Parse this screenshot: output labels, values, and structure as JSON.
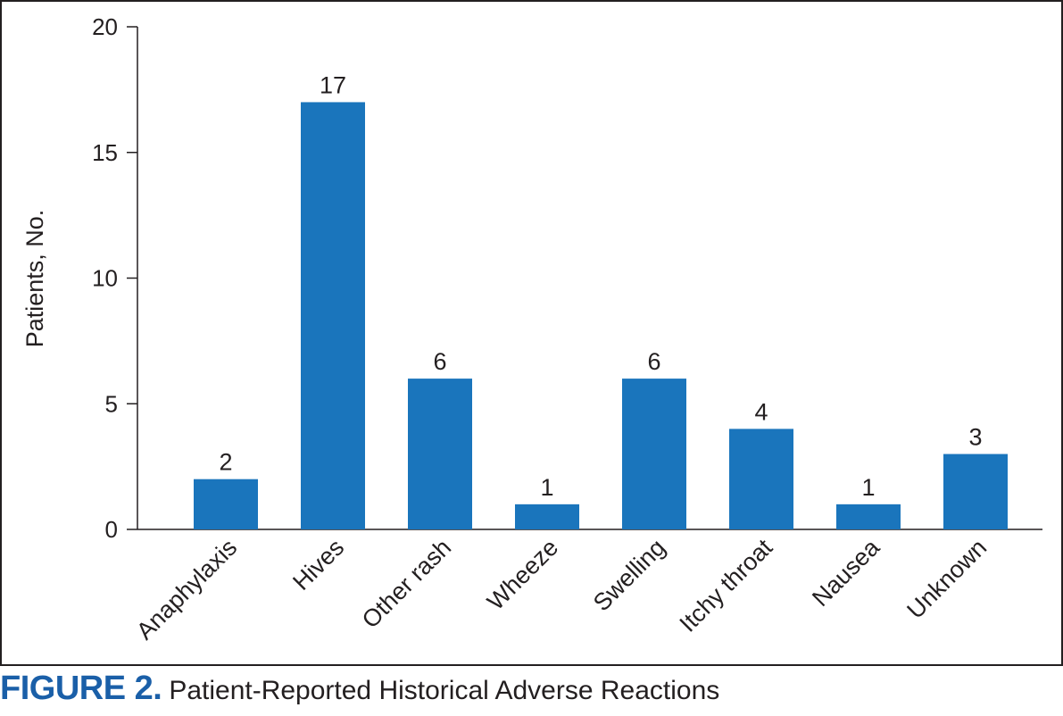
{
  "chart_data": {
    "type": "bar",
    "categories": [
      "Anaphylaxis",
      "Hives",
      "Other rash",
      "Wheeze",
      "Swelling",
      "Itchy throat",
      "Nausea",
      "Unknown"
    ],
    "values": [
      2,
      17,
      6,
      1,
      6,
      4,
      1,
      3
    ],
    "data_labels": [
      "2",
      "17",
      "6",
      "1",
      "6",
      "4",
      "1",
      "3"
    ],
    "title": "",
    "xlabel": "",
    "ylabel": "Patients, No.",
    "ylim": [
      0,
      20
    ],
    "yticks": [
      0,
      5,
      10,
      15,
      20
    ],
    "bar_color": "#1a75bc",
    "grid": false,
    "legend": "none"
  },
  "caption": {
    "label": "FIGURE 2.",
    "text": "Patient-Reported Historical Adverse Reactions",
    "label_color": "#1a5fa8"
  }
}
